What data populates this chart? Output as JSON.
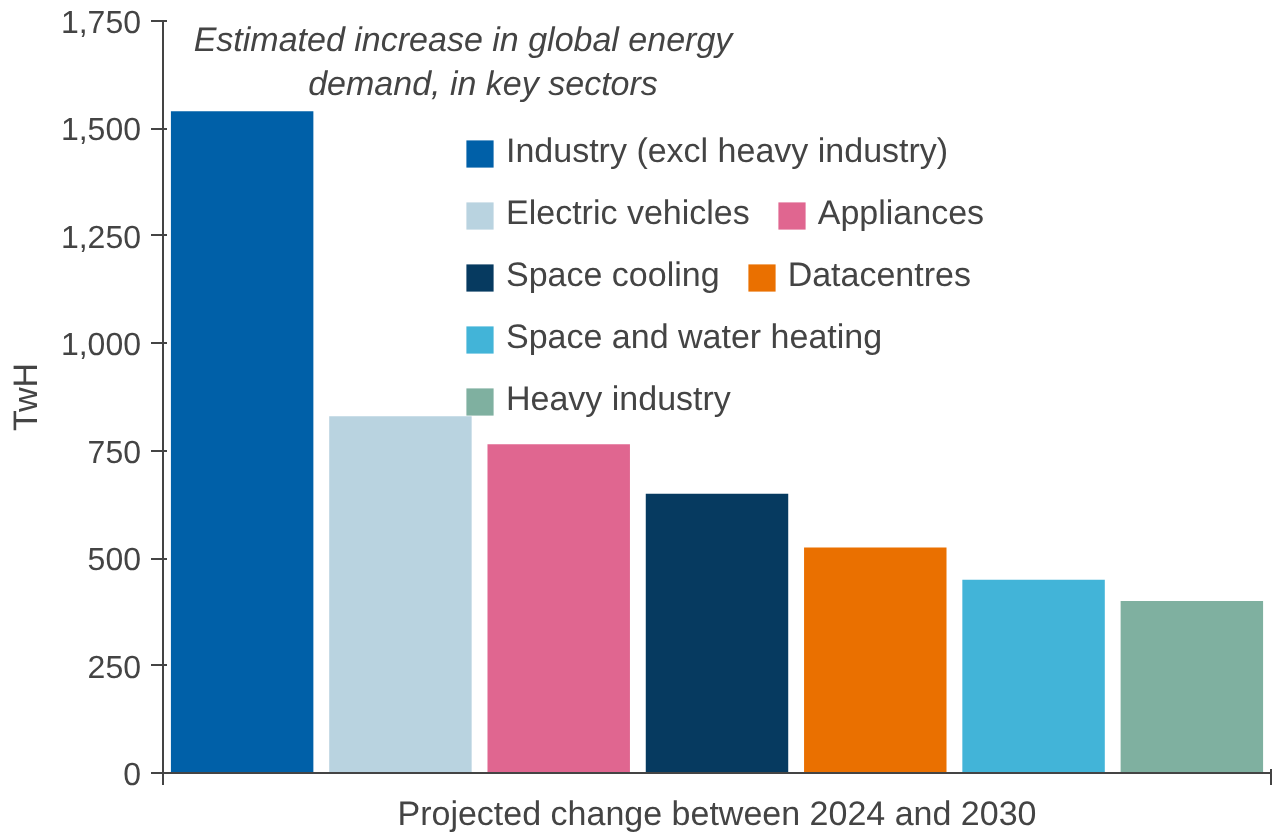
{
  "chart_data": {
    "type": "bar",
    "title": "Estimated increase in global energy demand, in key sectors",
    "xlabel": "Projected change between 2024 and 2030",
    "ylabel": "TwH",
    "categories": [
      null,
      null,
      null,
      null,
      null,
      null,
      null
    ],
    "series": [
      {
        "name": "Industry (excl heavy industry)",
        "color": "#0060a8",
        "values": [
          1540,
          null,
          null,
          null,
          null,
          null,
          null
        ]
      },
      {
        "name": "Electric vehicles",
        "color": "#b9d3e0",
        "values": [
          null,
          830,
          null,
          null,
          null,
          null,
          null
        ]
      },
      {
        "name": "Appliances",
        "color": "#e06690",
        "values": [
          null,
          null,
          765,
          null,
          null,
          null,
          null
        ]
      },
      {
        "name": "Space cooling",
        "color": "#063a60",
        "values": [
          null,
          null,
          null,
          650,
          null,
          null,
          null
        ]
      },
      {
        "name": "Datacentres",
        "color": "#ea7000",
        "values": [
          null,
          null,
          null,
          null,
          525,
          null,
          null
        ]
      },
      {
        "name": "Space and water heating",
        "color": "#42b4d8",
        "values": [
          null,
          null,
          null,
          null,
          null,
          450,
          null
        ]
      },
      {
        "name": "Heavy industry",
        "color": "#7fb0a0",
        "values": [
          null,
          null,
          null,
          null,
          null,
          null,
          400
        ]
      }
    ],
    "ylim": [
      0,
      1750
    ],
    "yticks": [
      0,
      {
        "value": 250,
        "label": "250"
      },
      {
        "value": 500,
        "label": "500"
      },
      {
        "value": 750,
        "label": "750"
      },
      {
        "value": 1000,
        "label": "1,000"
      },
      {
        "value": 1250,
        "label": "1,250"
      },
      {
        "value": 1500,
        "label": "1,500"
      },
      {
        "value": 1750,
        "label": "1,750"
      }
    ],
    "legend": "top right",
    "grid": false
  }
}
